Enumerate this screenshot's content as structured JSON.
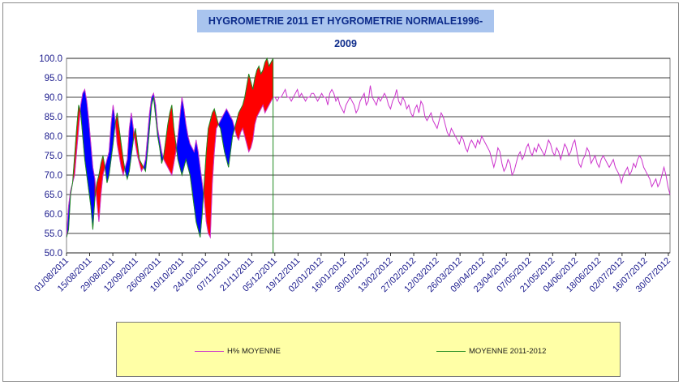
{
  "chart_data": {
    "type": "line",
    "title": "HYGROMETRIE 2011 ET HYGROMETRIE NORMALE1996-2009",
    "ylim": [
      50,
      100
    ],
    "yticks": [
      "50.0",
      "55.0",
      "60.0",
      "65.0",
      "70.0",
      "75.0",
      "80.0",
      "85.0",
      "90.0",
      "95.0",
      "100.0"
    ],
    "x_start": "01/08/2011",
    "x_end": "31/07/2012",
    "x_ticks": [
      "01/08/2011",
      "15/08/2011",
      "29/08/2011",
      "12/09/2011",
      "26/09/2011",
      "10/10/2011",
      "24/10/2011",
      "07/11/2011",
      "21/11/2011",
      "05/12/2011",
      "19/12/2011",
      "02/01/2012",
      "16/01/2012",
      "30/01/2012",
      "13/02/2012",
      "27/02/2012",
      "12/03/2012",
      "26/03/2012",
      "09/04/2012",
      "23/04/2012",
      "07/05/2012",
      "21/05/2012",
      "04/06/2012",
      "18/06/2012",
      "02/07/2012",
      "16/07/2012",
      "30/07/2012"
    ],
    "grid": true,
    "legend_position": "bottom",
    "colors": {
      "normal": "#cc33cc",
      "current": "#1f8a1f",
      "above": "#ff0000",
      "below": "#0000ff",
      "axis_text": "#1a1a8c"
    },
    "series": [
      {
        "name": "H% MOYENNE",
        "note_style": "magenta line",
        "values": [
          54,
          62,
          66,
          68,
          70,
          76,
          82,
          88,
          91,
          92,
          89,
          84,
          78,
          72,
          69,
          63,
          58,
          65,
          70,
          72,
          74,
          76,
          83,
          88,
          84,
          78,
          75,
          72,
          70,
          72,
          74,
          82,
          86,
          82,
          78,
          75,
          73,
          71,
          72,
          74,
          80,
          86,
          90,
          91,
          88,
          82,
          79,
          76,
          74,
          73,
          72,
          71,
          70,
          73,
          76,
          80,
          85,
          90,
          87,
          83,
          80,
          78,
          77,
          76,
          79,
          76,
          72,
          68,
          64,
          58,
          55,
          54,
          68,
          76,
          82,
          83,
          84,
          85,
          86,
          87,
          86,
          85,
          84,
          82,
          80,
          79,
          81,
          82,
          80,
          78,
          76,
          77,
          79,
          83,
          85,
          86,
          87,
          88,
          86,
          87,
          88,
          89,
          90,
          90,
          89,
          90,
          90,
          91,
          92,
          90,
          90,
          89,
          90,
          91,
          92,
          90,
          91,
          90,
          89,
          90,
          90,
          91,
          91,
          90,
          89,
          90,
          91,
          90,
          90,
          88,
          91,
          92,
          91,
          89,
          90,
          88,
          87,
          86,
          88,
          89,
          90,
          89,
          88,
          86,
          87,
          89,
          90,
          91,
          88,
          89,
          93,
          90,
          89,
          88,
          90,
          89,
          90,
          91,
          90,
          88,
          87,
          89,
          90,
          92,
          89,
          88,
          90,
          89,
          87,
          88,
          86,
          85,
          87,
          88,
          86,
          89,
          88,
          85,
          84,
          85,
          86,
          84,
          83,
          82,
          84,
          86,
          85,
          83,
          81,
          80,
          82,
          81,
          80,
          79,
          78,
          80,
          79,
          77,
          76,
          78,
          79,
          78,
          77,
          79,
          78,
          80,
          79,
          78,
          77,
          76,
          74,
          72,
          74,
          77,
          76,
          73,
          71,
          72,
          74,
          73,
          70,
          71,
          73,
          75,
          76,
          74,
          75,
          77,
          78,
          76,
          75,
          77,
          76,
          78,
          77,
          76,
          75,
          77,
          79,
          78,
          76,
          75,
          77,
          76,
          74,
          76,
          78,
          77,
          75,
          76,
          78,
          79,
          76,
          73,
          72,
          74,
          75,
          77,
          76,
          73,
          74,
          75,
          73,
          72,
          74,
          75,
          74,
          73,
          72,
          73,
          74,
          72,
          71,
          70,
          68,
          70,
          71,
          72,
          70,
          71,
          73,
          72,
          74,
          75,
          74,
          72,
          71,
          70,
          69,
          67,
          68,
          69,
          67,
          68,
          70,
          72,
          70,
          67,
          65
        ]
      },
      {
        "name": "MOYENNE 2011-2012",
        "note_style": "green line, red fill above normal, blue fill below normal",
        "values": [
          54,
          56,
          65,
          68,
          75,
          82,
          88,
          86,
          80,
          74,
          70,
          66,
          62,
          56,
          64,
          68,
          70,
          73,
          75,
          72,
          68,
          70,
          74,
          78,
          83,
          86,
          82,
          78,
          74,
          71,
          69,
          71,
          75,
          79,
          82,
          78,
          74,
          73,
          72,
          71,
          76,
          82,
          88,
          90,
          85,
          80,
          77,
          73,
          75,
          79,
          83,
          86,
          88,
          82,
          78,
          74,
          72,
          70,
          72,
          74,
          72,
          70,
          66,
          62,
          58,
          56,
          54,
          60,
          68,
          76,
          82,
          84,
          86,
          87,
          85,
          83,
          82,
          79,
          76,
          74,
          72,
          76,
          80,
          82,
          84,
          86,
          87,
          88,
          90,
          93,
          96,
          94,
          92,
          95,
          97,
          98,
          96,
          97,
          99,
          100,
          98,
          99,
          100
        ]
      }
    ]
  },
  "legend": {
    "normal_label": "H% MOYENNE",
    "current_label": "MOYENNE 2011-2012"
  }
}
